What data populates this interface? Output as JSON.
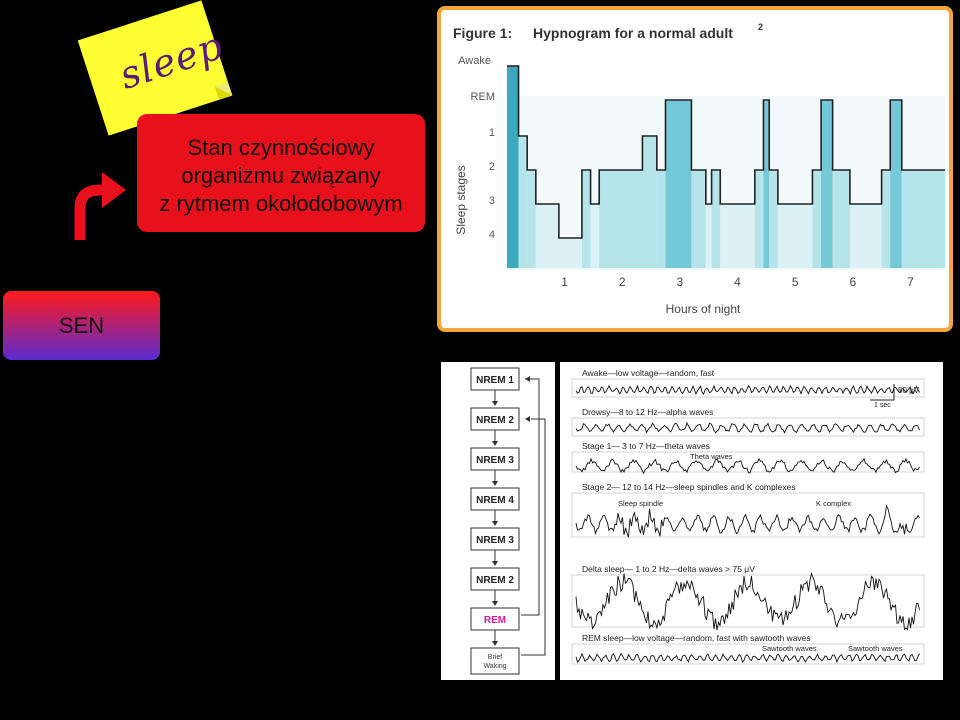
{
  "sticky_note": {
    "text": "sleep"
  },
  "definition": {
    "lines": [
      "Stan czynnościowy",
      "organizmu związany",
      "z rytmem okołodobowym"
    ]
  },
  "sen_button": {
    "label": "SEN"
  },
  "hypnogram": {
    "figure_label": "Figure 1:",
    "title": "Hypnogram for a normal adult",
    "superscript": "2",
    "y_axis_label": "Sleep stages",
    "stages": [
      "Awake",
      "REM",
      "1",
      "2",
      "3",
      "4"
    ],
    "x_axis_label": "Hours of night",
    "hours": [
      "1",
      "2",
      "3",
      "4",
      "5",
      "6",
      "7"
    ],
    "chart_data": {
      "type": "line",
      "xlabel": "Hours of night",
      "ylabel": "Sleep stages",
      "xlim": [
        0,
        7.6
      ],
      "y_categories": [
        "Awake",
        "REM",
        "1",
        "2",
        "3",
        "4"
      ],
      "x": [
        0,
        0.2,
        0.35,
        0.5,
        0.9,
        1.3,
        1.45,
        1.6,
        2.35,
        2.6,
        2.75,
        3.2,
        3.45,
        3.55,
        3.7,
        4.3,
        4.45,
        4.55,
        4.7,
        5.3,
        5.45,
        5.65,
        5.95,
        6.5,
        6.65,
        6.85,
        7.55
      ],
      "stage_index": [
        0,
        2,
        3,
        4,
        5,
        3,
        4,
        3,
        2,
        3,
        1,
        3,
        4,
        3,
        4,
        3,
        1,
        3,
        4,
        3,
        1,
        3,
        4,
        3,
        1,
        3,
        3
      ],
      "colors": {
        "rem_fill": "#1a9ab3",
        "stage_fill": "#a9dfe8",
        "deep_fill": "#e3f3f6"
      }
    }
  },
  "eeg_flow": {
    "stages": [
      "NREM 1",
      "NREM 2",
      "NREM 3",
      "NREM 4",
      "NREM 3",
      "NREM 2",
      "REM",
      "Brief Waking"
    ],
    "rem_color": "#d11a9a"
  },
  "eeg_traces": {
    "traces": [
      {
        "label": "Awake—low voltage—random, fast"
      },
      {
        "label": "Drowsy—8 to 12 Hz—alpha waves"
      },
      {
        "label": "Stage 1— 3 to 7 Hz—theta waves",
        "annotation": "Theta waves"
      },
      {
        "label": "Stage 2— 12 to 14 Hz—sleep spindles and K complexes",
        "annotation": "Sleep spindle",
        "annotation2": "K complex"
      },
      {
        "label": "Delta sleep— 1 to 2 Hz—delta waves > 75 μV"
      },
      {
        "label": "REM sleep—low voltage—random, fast with sawtooth waves",
        "annotation": "Sawtooth waves",
        "annotation2": "Sawtooth waves"
      }
    ],
    "scale_voltage": "50 μV",
    "scale_time": "1 sec"
  }
}
